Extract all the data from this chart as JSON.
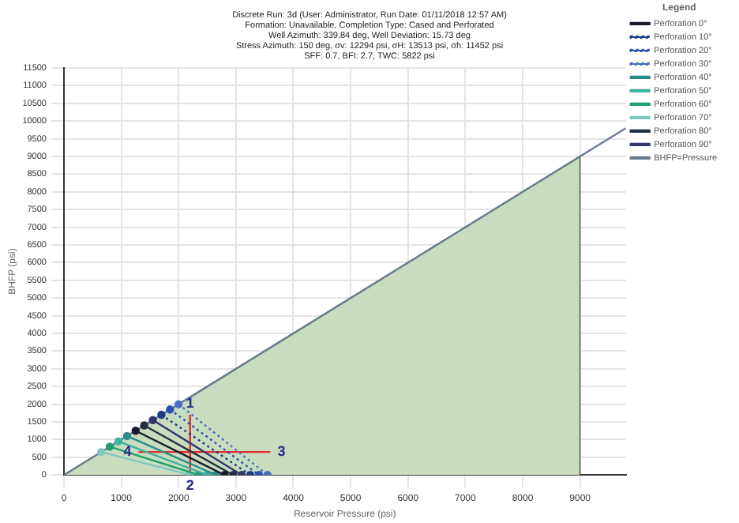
{
  "chart_data": {
    "type": "line",
    "title": [
      "Discrete Run: 3d (User: Administrator, Run Date: 01/11/2018 12:57 AM)",
      "Formation: Unavailable, Completion Type: Cased and Perforated",
      "Well Azimuth: 339.84 deg, Well Deviation: 15.73 deg",
      "Stress Azimuth: 150 deg, σv: 12294 psi, σH: 13513 psi, σh: 11452 psi",
      "SFF: 0.7, BFI: 2.7, TWC: 5822 psi"
    ],
    "xlabel": "Reservoir Pressure (psi)",
    "ylabel": "BHFP (psi)",
    "legend_title": "Legend",
    "legend": "right",
    "grid": true,
    "xlim": [
      0,
      9800
    ],
    "xticks": [
      0,
      1000,
      2000,
      3000,
      4000,
      5000,
      6000,
      7000,
      8000,
      9000
    ],
    "ylim": [
      0,
      11500
    ],
    "yticks": [
      0,
      500,
      1000,
      1500,
      2000,
      2500,
      3000,
      3500,
      4000,
      4500,
      5000,
      5500,
      6000,
      6500,
      7000,
      7500,
      8000,
      8500,
      9000,
      9500,
      10000,
      10500,
      11000,
      11500
    ],
    "series": [
      {
        "type": "area",
        "color": "#c8dcc0",
        "x": [
          0,
          9000,
          9000
        ],
        "values": [
          0,
          9000,
          0
        ]
      },
      {
        "name": "Perforation 0°",
        "color": "#1a1a2e",
        "marker": "circle",
        "x": [
          1250,
          2800
        ],
        "values": [
          1250,
          0
        ]
      },
      {
        "name": "Perforation 10°",
        "color": "#1f3a8a",
        "marker": "circle",
        "line_style": "dotted",
        "x": [
          1700,
          3250
        ],
        "values": [
          1700,
          0
        ]
      },
      {
        "name": "Perforation 20°",
        "color": "#3050b0",
        "marker": "circle",
        "line_style": "dotted",
        "x": [
          1850,
          3400
        ],
        "values": [
          1850,
          0
        ]
      },
      {
        "name": "Perforation 30°",
        "color": "#4a6fc0",
        "marker": "circle",
        "line_style": "dotted",
        "x": [
          2000,
          3550
        ],
        "values": [
          2000,
          0
        ]
      },
      {
        "name": "Perforation 40°",
        "color": "#2a8a8a",
        "marker": "circle",
        "x": [
          1100,
          2650
        ],
        "values": [
          1100,
          0
        ]
      },
      {
        "name": "Perforation 50°",
        "color": "#40b0a0",
        "marker": "circle",
        "x": [
          950,
          2500
        ],
        "values": [
          950,
          0
        ]
      },
      {
        "name": "Perforation 60°",
        "color": "#20a070",
        "marker": "circle",
        "x": [
          800,
          2350
        ],
        "values": [
          800,
          0
        ]
      },
      {
        "name": "Perforation 70°",
        "color": "#80c8c0",
        "marker": "circle",
        "x": [
          650,
          2200
        ],
        "values": [
          650,
          0
        ]
      },
      {
        "name": "Perforation 80°",
        "color": "#203040",
        "marker": "circle",
        "x": [
          1400,
          2950
        ],
        "values": [
          1400,
          0
        ]
      },
      {
        "name": "Perforation 90°",
        "color": "#303870",
        "marker": "circle",
        "x": [
          1550,
          3100
        ],
        "values": [
          1550,
          0
        ]
      },
      {
        "name": "BHFP=Pressure",
        "color": "#6a7a90",
        "x": [
          0,
          9800
        ],
        "values": [
          0,
          9800
        ]
      },
      {
        "color": "#e03030",
        "x": [
          1300,
          3600
        ],
        "values": [
          650,
          650
        ]
      },
      {
        "color": "#e03030",
        "x": [
          2200,
          2200
        ],
        "values": [
          0,
          1700
        ]
      }
    ],
    "annotations": [
      {
        "text": "1",
        "x": 2200,
        "y": 1700
      },
      {
        "text": "2",
        "x": 2200,
        "y": 0
      },
      {
        "text": "3",
        "x": 3600,
        "y": 650
      },
      {
        "text": "4",
        "x": 1300,
        "y": 650
      }
    ]
  }
}
